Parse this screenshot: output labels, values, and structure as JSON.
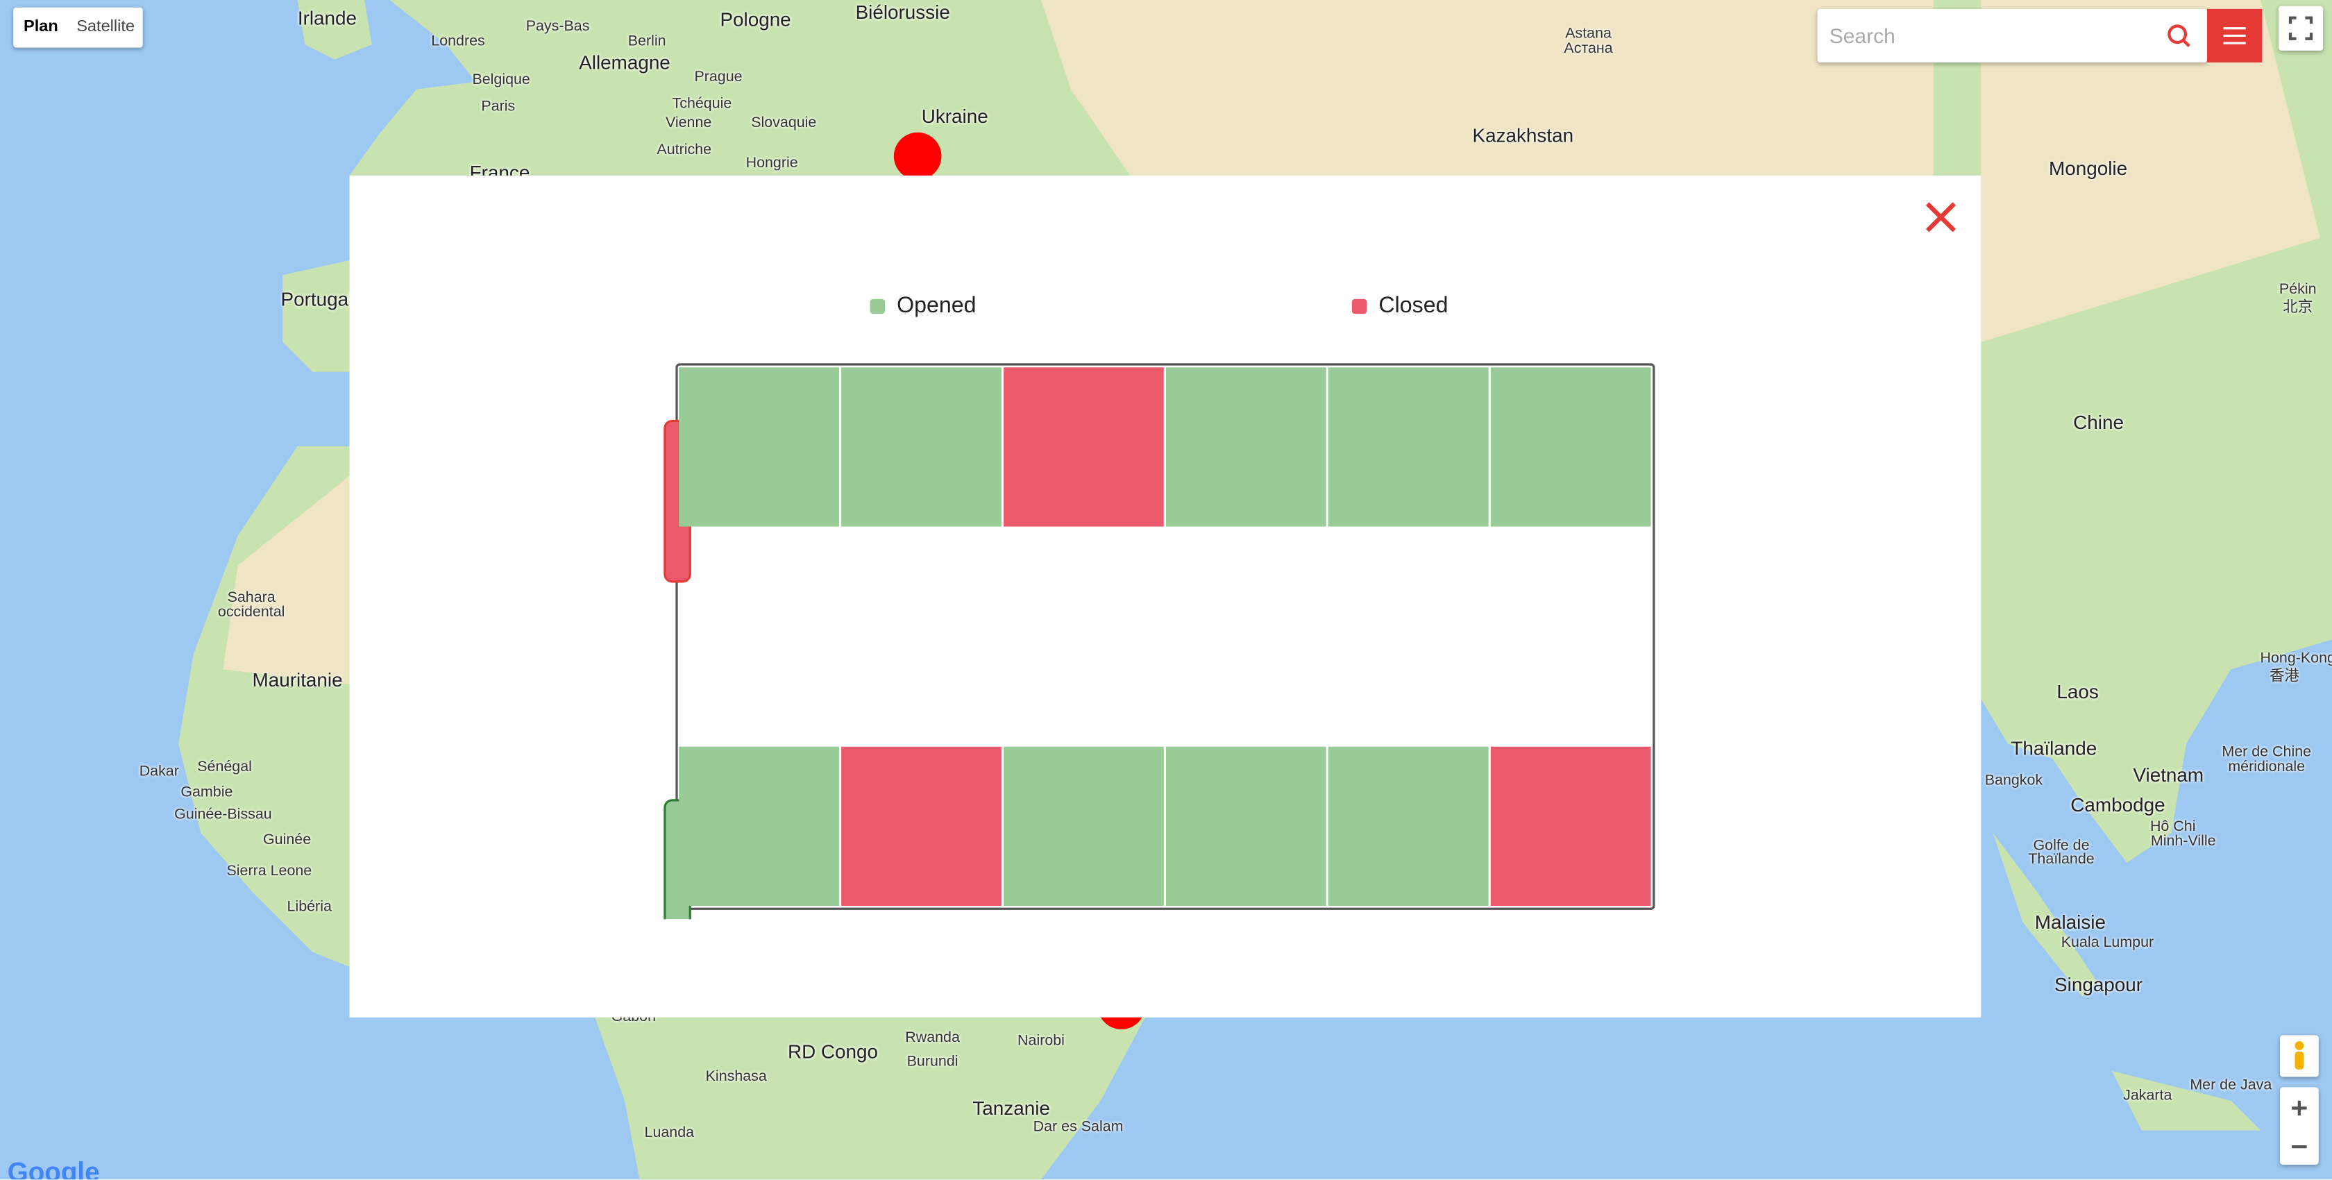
{
  "map": {
    "type_buttons": [
      "Plan",
      "Satellite"
    ],
    "search_placeholder": "Search",
    "logo": "Google",
    "labels": [
      "Irlande",
      "Londres",
      "Pays-Bas",
      "Berlin",
      "Pologne",
      "Biélorussie",
      "Allemagne",
      "Belgique",
      "Prague",
      "Paris",
      "Tchéquie",
      "Slovaquie",
      "Vienne",
      "Autriche",
      "Hongrie",
      "Ukraine",
      "France",
      "Astana",
      "Астана",
      "Kazakhstan",
      "Mongolie",
      "Portugal",
      "Pékin",
      "北京",
      "Chine",
      "Sahara",
      "occidental",
      "Mauritanie",
      "Laos",
      "Hong-Kong",
      "香港",
      "Thaïlande",
      "Vietnam",
      "Mer de Chine",
      "méridionale",
      "Dakar",
      "Sénégal",
      "Gambie",
      "Guinée-Bissau",
      "Cambodge",
      "Bangkok",
      "Hô Chi",
      "Minh-Ville",
      "Golfe de",
      "Thaïlande",
      "Guinée",
      "Sierra Leone",
      "Libéria",
      "Malaisie",
      "Kuala Lumpur",
      "Singapour",
      "Gabon",
      "RD Congo",
      "Rwanda",
      "Burundi",
      "Nairobi",
      "Kinshasa",
      "Tanzanie",
      "Dar es Salam",
      "Luanda",
      "Jakarta",
      "Mer de Java"
    ]
  },
  "modal": {
    "legend": [
      "Opened",
      "Closed"
    ],
    "grid": {
      "rows": [
        {
          "status": 1,
          "cells": [
            0,
            0,
            1,
            0,
            0,
            0
          ]
        },
        {
          "status": 0,
          "cells": [
            0,
            1,
            0,
            0,
            0,
            1
          ]
        }
      ]
    }
  }
}
